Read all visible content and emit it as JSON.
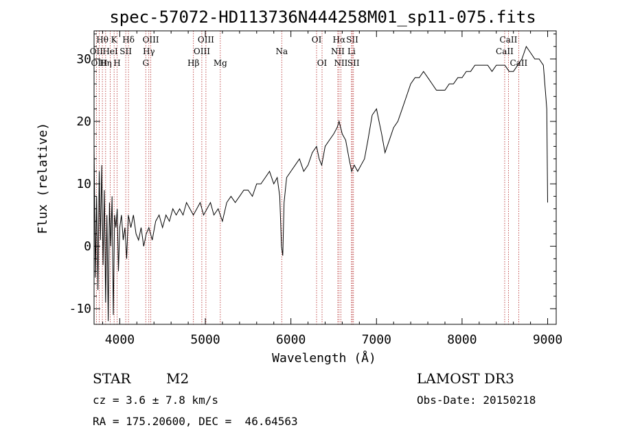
{
  "chart_data": {
    "type": "line",
    "title": "spec-57072-HD113736N444258M01_sp11-075.fits",
    "xlabel": "Wavelength (Å)",
    "ylabel": "Flux (relative)",
    "xlim": [
      3700,
      9100
    ],
    "ylim": [
      -12.5,
      34.5
    ],
    "xticks": [
      4000,
      5000,
      6000,
      7000,
      8000,
      9000
    ],
    "yticks": [
      -10,
      0,
      10,
      20,
      30
    ],
    "line_color": "#000000",
    "marker_color": "#b22222",
    "series": [
      {
        "name": "spectrum",
        "points": [
          [
            3700,
            16
          ],
          [
            3715,
            -5
          ],
          [
            3730,
            8
          ],
          [
            3745,
            -7
          ],
          [
            3760,
            12
          ],
          [
            3775,
            1
          ],
          [
            3790,
            13
          ],
          [
            3805,
            -3
          ],
          [
            3820,
            9
          ],
          [
            3835,
            -9
          ],
          [
            3850,
            5
          ],
          [
            3865,
            -12
          ],
          [
            3880,
            7
          ],
          [
            3895,
            0
          ],
          [
            3910,
            8
          ],
          [
            3925,
            -11
          ],
          [
            3940,
            5
          ],
          [
            3955,
            3
          ],
          [
            3970,
            6
          ],
          [
            3985,
            -4
          ],
          [
            4000,
            3
          ],
          [
            4020,
            5
          ],
          [
            4040,
            1
          ],
          [
            4060,
            3
          ],
          [
            4080,
            -2
          ],
          [
            4100,
            5
          ],
          [
            4130,
            3
          ],
          [
            4160,
            5
          ],
          [
            4190,
            2
          ],
          [
            4220,
            1
          ],
          [
            4250,
            3
          ],
          [
            4280,
            0
          ],
          [
            4310,
            2
          ],
          [
            4340,
            3
          ],
          [
            4380,
            1
          ],
          [
            4420,
            4
          ],
          [
            4460,
            5
          ],
          [
            4500,
            3
          ],
          [
            4540,
            5
          ],
          [
            4580,
            4
          ],
          [
            4620,
            6
          ],
          [
            4660,
            5
          ],
          [
            4700,
            6
          ],
          [
            4740,
            5
          ],
          [
            4780,
            7
          ],
          [
            4820,
            6
          ],
          [
            4860,
            5
          ],
          [
            4900,
            6
          ],
          [
            4940,
            7
          ],
          [
            4980,
            5
          ],
          [
            5020,
            6
          ],
          [
            5060,
            7
          ],
          [
            5100,
            5
          ],
          [
            5150,
            6
          ],
          [
            5200,
            4
          ],
          [
            5250,
            7
          ],
          [
            5300,
            8
          ],
          [
            5350,
            7
          ],
          [
            5400,
            8
          ],
          [
            5450,
            9
          ],
          [
            5500,
            9
          ],
          [
            5550,
            8
          ],
          [
            5600,
            10
          ],
          [
            5650,
            10
          ],
          [
            5700,
            11
          ],
          [
            5750,
            12
          ],
          [
            5800,
            10
          ],
          [
            5840,
            11
          ],
          [
            5870,
            8
          ],
          [
            5890,
            0
          ],
          [
            5905,
            -1.5
          ],
          [
            5920,
            7
          ],
          [
            5950,
            11
          ],
          [
            6000,
            12
          ],
          [
            6050,
            13
          ],
          [
            6100,
            14
          ],
          [
            6150,
            12
          ],
          [
            6200,
            13
          ],
          [
            6250,
            15
          ],
          [
            6300,
            16
          ],
          [
            6330,
            14
          ],
          [
            6360,
            13
          ],
          [
            6400,
            16
          ],
          [
            6450,
            17
          ],
          [
            6500,
            18
          ],
          [
            6540,
            19
          ],
          [
            6563,
            20
          ],
          [
            6600,
            18
          ],
          [
            6640,
            17
          ],
          [
            6680,
            14
          ],
          [
            6710,
            12
          ],
          [
            6740,
            13
          ],
          [
            6780,
            12
          ],
          [
            6820,
            13
          ],
          [
            6860,
            14
          ],
          [
            6900,
            17
          ],
          [
            6950,
            21
          ],
          [
            7000,
            22
          ],
          [
            7030,
            20
          ],
          [
            7060,
            18
          ],
          [
            7100,
            15
          ],
          [
            7150,
            17
          ],
          [
            7200,
            19
          ],
          [
            7250,
            20
          ],
          [
            7300,
            22
          ],
          [
            7350,
            24
          ],
          [
            7400,
            26
          ],
          [
            7450,
            27
          ],
          [
            7500,
            27
          ],
          [
            7550,
            28
          ],
          [
            7600,
            27
          ],
          [
            7650,
            26
          ],
          [
            7700,
            25
          ],
          [
            7750,
            25
          ],
          [
            7800,
            25
          ],
          [
            7850,
            26
          ],
          [
            7900,
            26
          ],
          [
            7950,
            27
          ],
          [
            8000,
            27
          ],
          [
            8050,
            28
          ],
          [
            8100,
            28
          ],
          [
            8150,
            29
          ],
          [
            8200,
            29
          ],
          [
            8250,
            29
          ],
          [
            8300,
            29
          ],
          [
            8350,
            28
          ],
          [
            8400,
            29
          ],
          [
            8450,
            29
          ],
          [
            8500,
            29
          ],
          [
            8550,
            28
          ],
          [
            8600,
            28
          ],
          [
            8650,
            29
          ],
          [
            8700,
            30
          ],
          [
            8750,
            32
          ],
          [
            8800,
            31
          ],
          [
            8850,
            30
          ],
          [
            8900,
            30
          ],
          [
            8950,
            29
          ],
          [
            8990,
            22
          ],
          [
            9000,
            7
          ]
        ]
      }
    ],
    "line_markers": [
      {
        "name": "Hθ",
        "wavelength": 3797,
        "row": 0
      },
      {
        "name": "OII",
        "wavelength": 3727,
        "row": 1
      },
      {
        "name": "OIII",
        "wavelength": 3760,
        "row": 2
      },
      {
        "name": "K",
        "wavelength": 3934,
        "row": 0
      },
      {
        "name": "HeI",
        "wavelength": 3889,
        "row": 1
      },
      {
        "name": "Hη",
        "wavelength": 3835,
        "row": 2
      },
      {
        "name": "Hδ",
        "wavelength": 4102,
        "row": 0
      },
      {
        "name": "SII",
        "wavelength": 4070,
        "row": 1
      },
      {
        "name": "H",
        "wavelength": 3969,
        "row": 2
      },
      {
        "name": "OIII",
        "wavelength": 4363,
        "row": 0
      },
      {
        "name": "Hγ",
        "wavelength": 4340,
        "row": 1
      },
      {
        "name": "G",
        "wavelength": 4304,
        "row": 2
      },
      {
        "name": "OIII",
        "wavelength": 5007,
        "row": 0
      },
      {
        "name": "OIII",
        "wavelength": 4959,
        "row": 1
      },
      {
        "name": "Hβ",
        "wavelength": 4861,
        "row": 2
      },
      {
        "name": "Mg",
        "wavelength": 5175,
        "row": 2
      },
      {
        "name": "Na",
        "wavelength": 5893,
        "row": 1
      },
      {
        "name": "OI",
        "wavelength": 6300,
        "row": 0
      },
      {
        "name": "OI",
        "wavelength": 6364,
        "row": 2
      },
      {
        "name": "Hα",
        "wavelength": 6563,
        "row": 0
      },
      {
        "name": "NII",
        "wavelength": 6548,
        "row": 1
      },
      {
        "name": "NII",
        "wavelength": 6584,
        "row": 2
      },
      {
        "name": "SII",
        "wavelength": 6717,
        "row": 0
      },
      {
        "name": "Li",
        "wavelength": 6708,
        "row": 1
      },
      {
        "name": "SII",
        "wavelength": 6731,
        "row": 2
      },
      {
        "name": "CaII",
        "wavelength": 8542,
        "row": 0
      },
      {
        "name": "CaII",
        "wavelength": 8498,
        "row": 1
      },
      {
        "name": "CaII",
        "wavelength": 8662,
        "row": 2
      }
    ]
  },
  "info": {
    "class_label": "STAR",
    "subclass": "M2",
    "survey": "LAMOST DR3",
    "velocity": "cz = 3.6 ± 7.8 km/s",
    "obs_date": "Obs-Date: 20150218",
    "coords": "RA = 175.20600, DEC =  46.64563"
  }
}
